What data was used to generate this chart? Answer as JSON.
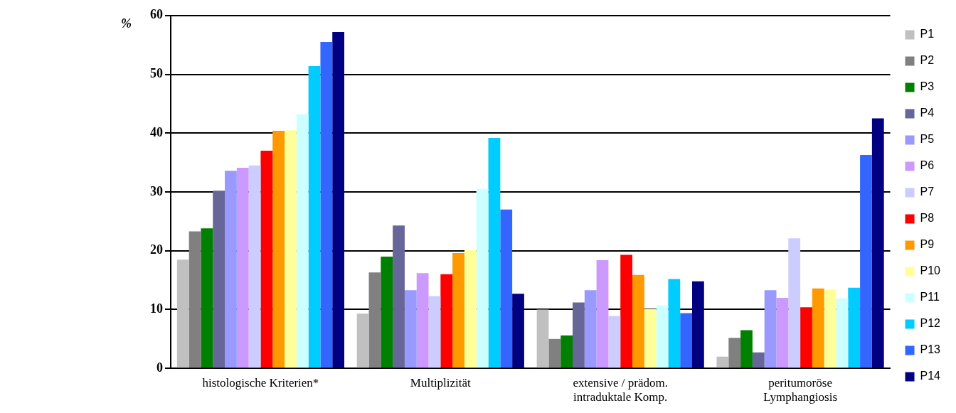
{
  "chart_data": {
    "type": "bar",
    "ylabel": "%",
    "categories": [
      "histologische Kriterien*",
      "Multiplizität",
      "extensive / prädom. intraduktale Komp.",
      "peritumoröse Lymphangiosis"
    ],
    "series": [
      {
        "name": "P1",
        "color": "#c0c0c0",
        "values": [
          18.5,
          9.3,
          10.0,
          2.0
        ]
      },
      {
        "name": "P2",
        "color": "#808080",
        "values": [
          23.3,
          16.3,
          5.0,
          5.2
        ]
      },
      {
        "name": "P3",
        "color": "#008000",
        "values": [
          23.8,
          19.0,
          5.6,
          6.5
        ]
      },
      {
        "name": "P4",
        "color": "#666699",
        "values": [
          30.2,
          24.3,
          11.2,
          2.7
        ]
      },
      {
        "name": "P5",
        "color": "#9999ff",
        "values": [
          33.6,
          13.3,
          13.3,
          13.3
        ]
      },
      {
        "name": "P6",
        "color": "#cc99ff",
        "values": [
          34.1,
          16.2,
          18.4,
          12.0
        ]
      },
      {
        "name": "P7",
        "color": "#ccccff",
        "values": [
          34.5,
          12.3,
          8.9,
          22.1
        ]
      },
      {
        "name": "P8",
        "color": "#ff0000",
        "values": [
          37.0,
          16.0,
          19.3,
          10.4
        ]
      },
      {
        "name": "P9",
        "color": "#ff9900",
        "values": [
          40.4,
          19.6,
          15.9,
          13.6
        ]
      },
      {
        "name": "P10",
        "color": "#ffff99",
        "values": [
          40.5,
          20.1,
          10.1,
          13.4
        ]
      },
      {
        "name": "P11",
        "color": "#ccffff",
        "values": [
          43.2,
          30.5,
          10.7,
          11.9
        ]
      },
      {
        "name": "P12",
        "color": "#00ccff",
        "values": [
          51.4,
          39.2,
          15.2,
          13.7
        ]
      },
      {
        "name": "P13",
        "color": "#3366ff",
        "values": [
          55.5,
          27.0,
          9.4,
          36.3
        ]
      },
      {
        "name": "P14",
        "color": "#000080",
        "values": [
          57.2,
          12.7,
          14.8,
          42.5
        ]
      }
    ],
    "ylim": [
      0,
      60
    ],
    "yticks": [
      0,
      10,
      20,
      30,
      40,
      50,
      60
    ],
    "grid": "y",
    "legend": "right"
  }
}
